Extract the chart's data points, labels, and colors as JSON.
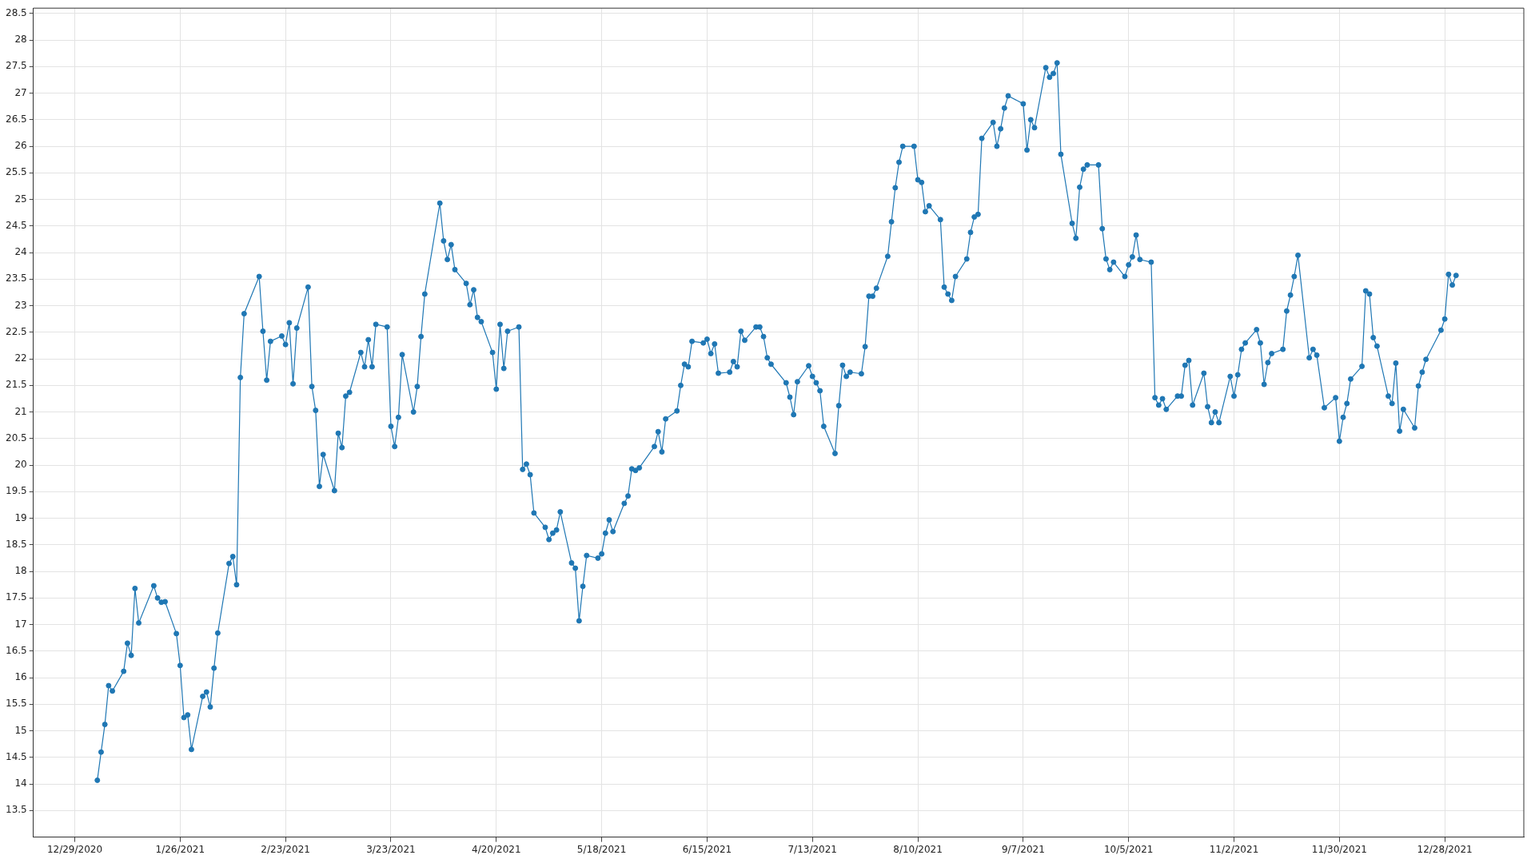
{
  "chart_data": {
    "type": "line",
    "marker": "circle",
    "line_style": "solid",
    "grid": true,
    "legend": false,
    "xlim": [
      "2020-12-18",
      "2022-01-18"
    ],
    "xticks": [
      {
        "value": "2020-12-29",
        "label": "12/29/2020"
      },
      {
        "value": "2021-01-26",
        "label": "1/26/2021"
      },
      {
        "value": "2021-02-23",
        "label": "2/23/2021"
      },
      {
        "value": "2021-03-23",
        "label": "3/23/2021"
      },
      {
        "value": "2021-04-20",
        "label": "4/20/2021"
      },
      {
        "value": "2021-05-18",
        "label": "5/18/2021"
      },
      {
        "value": "2021-06-15",
        "label": "6/15/2021"
      },
      {
        "value": "2021-07-13",
        "label": "7/13/2021"
      },
      {
        "value": "2021-08-10",
        "label": "8/10/2021"
      },
      {
        "value": "2021-09-07",
        "label": "9/7/2021"
      },
      {
        "value": "2021-10-05",
        "label": "10/5/2021"
      },
      {
        "value": "2021-11-02",
        "label": "11/2/2021"
      },
      {
        "value": "2021-11-30",
        "label": "11/30/2021"
      },
      {
        "value": "2021-12-28",
        "label": "12/28/2021"
      }
    ],
    "ylim": [
      13,
      28.6
    ],
    "yticks": [
      13.5,
      14,
      14.5,
      15,
      15.5,
      16,
      16.5,
      17,
      17.5,
      18,
      18.5,
      19,
      19.5,
      20,
      20.5,
      21,
      21.5,
      22,
      22.5,
      23,
      23.5,
      24,
      24.5,
      25,
      25.5,
      26,
      26.5,
      27,
      27.5,
      28,
      28.5
    ],
    "x": [
      "2021-01-04",
      "2021-01-05",
      "2021-01-06",
      "2021-01-07",
      "2021-01-08",
      "2021-01-11",
      "2021-01-12",
      "2021-01-13",
      "2021-01-14",
      "2021-01-15",
      "2021-01-19",
      "2021-01-20",
      "2021-01-21",
      "2021-01-22",
      "2021-01-25",
      "2021-01-26",
      "2021-01-27",
      "2021-01-28",
      "2021-01-29",
      "2021-02-01",
      "2021-02-02",
      "2021-02-03",
      "2021-02-04",
      "2021-02-05",
      "2021-02-08",
      "2021-02-09",
      "2021-02-10",
      "2021-02-11",
      "2021-02-12",
      "2021-02-16",
      "2021-02-17",
      "2021-02-18",
      "2021-02-19",
      "2021-02-22",
      "2021-02-23",
      "2021-02-24",
      "2021-02-25",
      "2021-02-26",
      "2021-03-01",
      "2021-03-02",
      "2021-03-03",
      "2021-03-04",
      "2021-03-05",
      "2021-03-08",
      "2021-03-09",
      "2021-03-10",
      "2021-03-11",
      "2021-03-12",
      "2021-03-15",
      "2021-03-16",
      "2021-03-17",
      "2021-03-18",
      "2021-03-19",
      "2021-03-22",
      "2021-03-23",
      "2021-03-24",
      "2021-03-25",
      "2021-03-26",
      "2021-03-29",
      "2021-03-30",
      "2021-03-31",
      "2021-04-01",
      "2021-04-05",
      "2021-04-06",
      "2021-04-07",
      "2021-04-08",
      "2021-04-09",
      "2021-04-12",
      "2021-04-13",
      "2021-04-14",
      "2021-04-15",
      "2021-04-16",
      "2021-04-19",
      "2021-04-20",
      "2021-04-21",
      "2021-04-22",
      "2021-04-23",
      "2021-04-26",
      "2021-04-27",
      "2021-04-28",
      "2021-04-29",
      "2021-04-30",
      "2021-05-03",
      "2021-05-04",
      "2021-05-05",
      "2021-05-06",
      "2021-05-07",
      "2021-05-10",
      "2021-05-11",
      "2021-05-12",
      "2021-05-13",
      "2021-05-14",
      "2021-05-17",
      "2021-05-18",
      "2021-05-19",
      "2021-05-20",
      "2021-05-21",
      "2021-05-24",
      "2021-05-25",
      "2021-05-26",
      "2021-05-27",
      "2021-05-28",
      "2021-06-01",
      "2021-06-02",
      "2021-06-03",
      "2021-06-04",
      "2021-06-07",
      "2021-06-08",
      "2021-06-09",
      "2021-06-10",
      "2021-06-11",
      "2021-06-14",
      "2021-06-15",
      "2021-06-16",
      "2021-06-17",
      "2021-06-18",
      "2021-06-21",
      "2021-06-22",
      "2021-06-23",
      "2021-06-24",
      "2021-06-25",
      "2021-06-28",
      "2021-06-29",
      "2021-06-30",
      "2021-07-01",
      "2021-07-02",
      "2021-07-06",
      "2021-07-07",
      "2021-07-08",
      "2021-07-09",
      "2021-07-12",
      "2021-07-13",
      "2021-07-14",
      "2021-07-15",
      "2021-07-16",
      "2021-07-19",
      "2021-07-20",
      "2021-07-21",
      "2021-07-22",
      "2021-07-23",
      "2021-07-26",
      "2021-07-27",
      "2021-07-28",
      "2021-07-29",
      "2021-07-30",
      "2021-08-02",
      "2021-08-03",
      "2021-08-04",
      "2021-08-05",
      "2021-08-06",
      "2021-08-09",
      "2021-08-10",
      "2021-08-11",
      "2021-08-12",
      "2021-08-13",
      "2021-08-16",
      "2021-08-17",
      "2021-08-18",
      "2021-08-19",
      "2021-08-20",
      "2021-08-23",
      "2021-08-24",
      "2021-08-25",
      "2021-08-26",
      "2021-08-27",
      "2021-08-30",
      "2021-08-31",
      "2021-09-01",
      "2021-09-02",
      "2021-09-03",
      "2021-09-07",
      "2021-09-08",
      "2021-09-09",
      "2021-09-10",
      "2021-09-13",
      "2021-09-14",
      "2021-09-15",
      "2021-09-16",
      "2021-09-17",
      "2021-09-20",
      "2021-09-21",
      "2021-09-22",
      "2021-09-23",
      "2021-09-24",
      "2021-09-27",
      "2021-09-28",
      "2021-09-29",
      "2021-09-30",
      "2021-10-01",
      "2021-10-04",
      "2021-10-05",
      "2021-10-06",
      "2021-10-07",
      "2021-10-08",
      "2021-10-11",
      "2021-10-12",
      "2021-10-13",
      "2021-10-14",
      "2021-10-15",
      "2021-10-18",
      "2021-10-19",
      "2021-10-20",
      "2021-10-21",
      "2021-10-22",
      "2021-10-25",
      "2021-10-26",
      "2021-10-27",
      "2021-10-28",
      "2021-10-29",
      "2021-11-01",
      "2021-11-02",
      "2021-11-03",
      "2021-11-04",
      "2021-11-05",
      "2021-11-08",
      "2021-11-09",
      "2021-11-10",
      "2021-11-11",
      "2021-11-12",
      "2021-11-15",
      "2021-11-16",
      "2021-11-17",
      "2021-11-18",
      "2021-11-19",
      "2021-11-22",
      "2021-11-23",
      "2021-11-24",
      "2021-11-26",
      "2021-11-29",
      "2021-11-30",
      "2021-12-01",
      "2021-12-02",
      "2021-12-03",
      "2021-12-06",
      "2021-12-07",
      "2021-12-08",
      "2021-12-09",
      "2021-12-10",
      "2021-12-13",
      "2021-12-14",
      "2021-12-15",
      "2021-12-16",
      "2021-12-17",
      "2021-12-20",
      "2021-12-21",
      "2021-12-22",
      "2021-12-23",
      "2021-12-27",
      "2021-12-28",
      "2021-12-29",
      "2021-12-30",
      "2021-12-31"
    ],
    "series": [
      {
        "color": "#1f77b4",
        "values": [
          14.07,
          14.6,
          15.12,
          15.85,
          15.75,
          16.12,
          16.65,
          16.42,
          17.68,
          17.03,
          17.73,
          17.5,
          17.42,
          17.43,
          16.83,
          16.23,
          15.25,
          15.3,
          14.65,
          15.65,
          15.73,
          15.45,
          16.18,
          16.84,
          18.15,
          18.28,
          17.75,
          21.65,
          22.85,
          23.55,
          22.52,
          21.6,
          22.33,
          22.43,
          22.27,
          22.68,
          21.53,
          22.58,
          23.35,
          21.48,
          21.03,
          19.6,
          20.2,
          19.52,
          20.6,
          20.33,
          21.3,
          21.37,
          22.12,
          21.85,
          22.36,
          21.85,
          22.65,
          22.6,
          20.73,
          20.35,
          20.9,
          22.08,
          21.0,
          21.48,
          22.42,
          23.22,
          24.93,
          24.22,
          23.87,
          24.15,
          23.68,
          23.42,
          23.02,
          23.3,
          22.78,
          22.7,
          22.12,
          21.43,
          22.65,
          21.82,
          22.52,
          22.6,
          19.92,
          20.02,
          19.82,
          19.1,
          18.83,
          18.6,
          18.72,
          18.78,
          19.12,
          18.16,
          18.06,
          17.07,
          17.72,
          18.3,
          18.25,
          18.33,
          18.72,
          18.97,
          18.75,
          19.28,
          19.42,
          19.93,
          19.9,
          19.95,
          20.35,
          20.63,
          20.25,
          20.87,
          21.02,
          21.5,
          21.9,
          21.85,
          22.33,
          22.3,
          22.37,
          22.1,
          22.28,
          21.73,
          21.75,
          21.95,
          21.85,
          22.52,
          22.35,
          22.6,
          22.6,
          22.42,
          22.02,
          21.9,
          21.55,
          21.28,
          20.95,
          21.57,
          21.87,
          21.67,
          21.55,
          21.4,
          20.73,
          20.22,
          21.12,
          21.88,
          21.67,
          21.75,
          21.72,
          22.23,
          23.18,
          23.18,
          23.33,
          23.93,
          24.58,
          25.22,
          25.7,
          26.0,
          26.0,
          25.37,
          25.32,
          24.77,
          24.88,
          24.62,
          23.35,
          23.22,
          23.1,
          23.55,
          23.88,
          24.38,
          24.67,
          24.72,
          26.15,
          26.45,
          26.0,
          26.33,
          26.72,
          26.95,
          26.8,
          25.93,
          26.5,
          26.35,
          27.48,
          27.3,
          27.37,
          27.57,
          25.85,
          24.55,
          24.27,
          25.23,
          25.57,
          25.65,
          25.65,
          24.45,
          23.88,
          23.68,
          23.82,
          23.55,
          23.77,
          23.92,
          24.33,
          23.87,
          23.82,
          21.27,
          21.13,
          21.25,
          21.05,
          21.3,
          21.3,
          21.88,
          21.97,
          21.13,
          21.73,
          21.1,
          20.8,
          21.0,
          20.8,
          21.67,
          21.3,
          21.7,
          22.18,
          22.3,
          22.55,
          22.3,
          21.52,
          21.93,
          22.1,
          22.18,
          22.9,
          23.2,
          23.55,
          23.95,
          22.02,
          22.18,
          22.07,
          21.08,
          21.27,
          20.45,
          20.9,
          21.16,
          21.62,
          21.86,
          23.28,
          23.22,
          22.4,
          22.24,
          21.3,
          21.16,
          21.92,
          20.64,
          21.05,
          20.7,
          21.49,
          21.75,
          21.99,
          22.54,
          22.75,
          23.59,
          23.39,
          23.57
        ]
      }
    ]
  }
}
